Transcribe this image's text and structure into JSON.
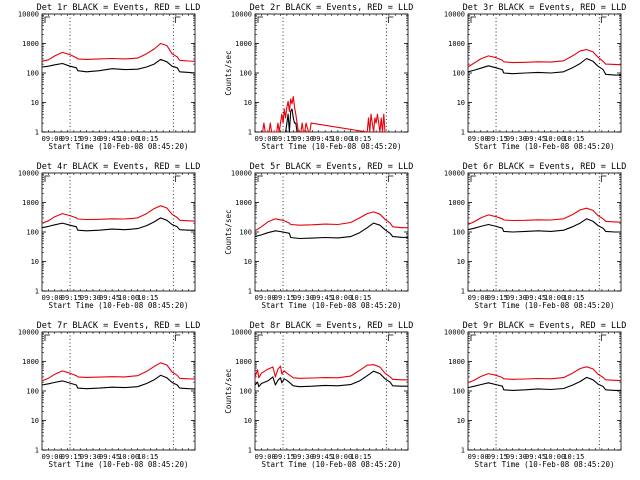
{
  "colors": {
    "events": "#000000",
    "lld": "#e8000b",
    "background": "#ffffff",
    "axes": "#000000"
  },
  "chart_data": {
    "type": "line",
    "layout": "3x3 grid of panels",
    "x_ticks": [
      "09:00",
      "09:15",
      "09:30",
      "09:45",
      "10:00",
      "10:15"
    ],
    "x_range_min": [
      510,
      630
    ],
    "y_scale": "log",
    "y_ticks": [
      "1",
      "10",
      "100",
      "1000",
      "10000"
    ],
    "y_range": [
      1,
      10000
    ],
    "grid": false,
    "xlabel": "Start Time (10-Feb-08 08:45:20)",
    "ylabel": "Counts/sec",
    "vlines_min": [
      532,
      613
    ],
    "series_legend": "BLACK = Events, RED = LLD",
    "panels": [
      {
        "title": "Det 1r BLACK = Events, RED = LLD",
        "show_ylabel": false,
        "series": [
          {
            "key": "events",
            "x": [
              510,
              515,
              520,
              526,
              532,
              537,
              538,
              545,
              555,
              565,
              575,
              585,
              592,
              598,
              603,
              608,
              612,
              616,
              618,
              625,
              630
            ],
            "values": [
              160,
              170,
              190,
              210,
              170,
              150,
              120,
              110,
              120,
              140,
              130,
              135,
              160,
              200,
              290,
              240,
              170,
              150,
              110,
              105,
              100
            ]
          },
          {
            "key": "lld",
            "x": [
              510,
              515,
              520,
              526,
              532,
              537,
              538,
              545,
              555,
              565,
              575,
              585,
              592,
              598,
              603,
              608,
              612,
              616,
              618,
              625,
              630
            ],
            "values": [
              250,
              280,
              380,
              500,
              420,
              330,
              300,
              290,
              300,
              310,
              300,
              320,
              450,
              650,
              1000,
              850,
              450,
              350,
              270,
              255,
              250
            ]
          }
        ]
      },
      {
        "title": "Det 2r BLACK = Events, RED = LLD",
        "show_ylabel": true,
        "series": [
          {
            "key": "events",
            "x": [
              534,
              535,
              536,
              537,
              538,
              539,
              540,
              541,
              542,
              543
            ],
            "values": [
              1,
              2,
              4,
              1,
              5,
              6,
              3,
              2,
              2,
              1
            ]
          },
          {
            "key": "lld",
            "x": [
              516,
              517,
              518,
              521,
              522,
              523,
              527,
              528,
              529,
              530,
              531,
              532,
              533,
              534,
              535,
              536,
              537,
              538,
              539,
              540,
              541,
              542,
              543,
              544,
              546,
              547,
              548,
              549,
              550,
              552,
              553,
              554,
              598,
              599,
              600,
              601,
              602,
              603,
              604,
              605,
              606,
              607,
              608,
              609,
              610,
              611,
              612
            ],
            "values": [
              1,
              2,
              1,
              1,
              2,
              1,
              1,
              2,
              1,
              2,
              4,
              2,
              6,
              3,
              7,
              11,
              5,
              13,
              9,
              16,
              7,
              4,
              2,
              1,
              1,
              2,
              1,
              1,
              2,
              1,
              1,
              2,
              1,
              3,
              1,
              4,
              2,
              1,
              3,
              2,
              4,
              2,
              1,
              3,
              1,
              4,
              1
            ]
          }
        ]
      },
      {
        "title": "Det 3r BLACK = Events, RED = LLD",
        "show_ylabel": false,
        "series": [
          {
            "key": "events",
            "x": [
              510,
              515,
              520,
              526,
              532,
              537,
              538,
              545,
              555,
              565,
              575,
              585,
              592,
              598,
              603,
              608,
              612,
              616,
              618,
              625,
              630
            ],
            "values": [
              110,
              125,
              145,
              175,
              150,
              130,
              100,
              95,
              100,
              105,
              100,
              110,
              150,
              210,
              310,
              250,
              170,
              130,
              90,
              85,
              85
            ]
          },
          {
            "key": "lld",
            "x": [
              510,
              515,
              520,
              526,
              532,
              537,
              538,
              545,
              555,
              565,
              575,
              585,
              592,
              598,
              603,
              608,
              612,
              616,
              618,
              625,
              630
            ],
            "values": [
              160,
              220,
              300,
              380,
              330,
              270,
              240,
              225,
              230,
              240,
              235,
              260,
              380,
              560,
              620,
              520,
              340,
              250,
              200,
              195,
              190
            ]
          }
        ]
      },
      {
        "title": "Det 4r BLACK = Events, RED = LLD",
        "show_ylabel": false,
        "series": [
          {
            "key": "events",
            "x": [
              510,
              515,
              520,
              526,
              532,
              537,
              538,
              545,
              555,
              565,
              575,
              585,
              592,
              598,
              603,
              608,
              612,
              616,
              618,
              625,
              630
            ],
            "values": [
              140,
              155,
              175,
              200,
              170,
              150,
              115,
              110,
              115,
              125,
              120,
              130,
              165,
              220,
              300,
              250,
              180,
              150,
              120,
              115,
              115
            ]
          },
          {
            "key": "lld",
            "x": [
              510,
              515,
              520,
              526,
              532,
              537,
              538,
              545,
              555,
              565,
              575,
              585,
              592,
              598,
              603,
              608,
              612,
              616,
              618,
              625,
              630
            ],
            "values": [
              200,
              240,
              330,
              420,
              360,
              300,
              275,
              265,
              270,
              280,
              275,
              300,
              420,
              620,
              780,
              650,
              400,
              310,
              250,
              240,
              235
            ]
          }
        ]
      },
      {
        "title": "Det 5r BLACK = Events, RED = LLD",
        "show_ylabel": true,
        "series": [
          {
            "key": "events",
            "x": [
              510,
              515,
              520,
              526,
              532,
              537,
              538,
              545,
              555,
              565,
              575,
              585,
              592,
              598,
              603,
              608,
              612,
              616,
              618,
              625,
              630
            ],
            "values": [
              70,
              80,
              95,
              110,
              100,
              90,
              65,
              60,
              62,
              65,
              63,
              70,
              95,
              140,
              200,
              170,
              120,
              90,
              70,
              66,
              65
            ]
          },
          {
            "key": "lld",
            "x": [
              510,
              515,
              520,
              526,
              532,
              537,
              538,
              545,
              555,
              565,
              575,
              585,
              592,
              598,
              603,
              608,
              612,
              616,
              618,
              625,
              630
            ],
            "values": [
              110,
              150,
              220,
              280,
              250,
              200,
              180,
              170,
              175,
              185,
              180,
              210,
              300,
              420,
              480,
              400,
              270,
              200,
              150,
              140,
              140
            ]
          }
        ]
      },
      {
        "title": "Det 6r BLACK = Events, RED = LLD",
        "show_ylabel": false,
        "series": [
          {
            "key": "events",
            "x": [
              510,
              515,
              520,
              526,
              532,
              537,
              538,
              545,
              555,
              565,
              575,
              585,
              592,
              598,
              603,
              608,
              612,
              616,
              618,
              625,
              630
            ],
            "values": [
              120,
              135,
              155,
              180,
              155,
              135,
              105,
              100,
              105,
              110,
              105,
              115,
              150,
              200,
              280,
              230,
              165,
              135,
              105,
              100,
              100
            ]
          },
          {
            "key": "lld",
            "x": [
              510,
              515,
              520,
              526,
              532,
              537,
              538,
              545,
              555,
              565,
              575,
              585,
              592,
              598,
              603,
              608,
              612,
              616,
              618,
              625,
              630
            ],
            "values": [
              180,
              225,
              300,
              380,
              330,
              280,
              255,
              245,
              250,
              260,
              255,
              280,
              390,
              560,
              640,
              540,
              360,
              280,
              230,
              220,
              215
            ]
          }
        ]
      },
      {
        "title": "Det 7r BLACK = Events, RED = LLD",
        "show_ylabel": false,
        "series": [
          {
            "key": "events",
            "x": [
              510,
              515,
              520,
              526,
              532,
              537,
              538,
              545,
              555,
              565,
              575,
              585,
              592,
              598,
              603,
              608,
              612,
              616,
              618,
              625,
              630
            ],
            "values": [
              160,
              175,
              195,
              220,
              185,
              160,
              125,
              120,
              125,
              135,
              130,
              140,
              180,
              240,
              340,
              280,
              195,
              160,
              125,
              120,
              118
            ]
          },
          {
            "key": "lld",
            "x": [
              510,
              515,
              520,
              526,
              532,
              537,
              538,
              545,
              555,
              565,
              575,
              585,
              592,
              598,
              603,
              608,
              612,
              616,
              618,
              625,
              630
            ],
            "values": [
              220,
              270,
              370,
              480,
              400,
              330,
              300,
              290,
              295,
              305,
              300,
              330,
              460,
              680,
              900,
              760,
              440,
              340,
              270,
              260,
              255
            ]
          }
        ]
      },
      {
        "title": "Det 8r BLACK = Events, RED = LLD",
        "show_ylabel": true,
        "series": [
          {
            "key": "events",
            "x": [
              510,
              512,
              513,
              515,
              520,
              524,
              526,
              528,
              530,
              531,
              533,
              535,
              540,
              545,
              555,
              565,
              575,
              585,
              592,
              598,
              603,
              608,
              612,
              616,
              618,
              625,
              630
            ],
            "values": [
              160,
              200,
              140,
              180,
              220,
              300,
              160,
              230,
              280,
              190,
              260,
              230,
              150,
              140,
              145,
              155,
              150,
              165,
              220,
              330,
              470,
              390,
              260,
              200,
              150,
              145,
              145
            ]
          },
          {
            "key": "lld",
            "x": [
              510,
              512,
              513,
              515,
              520,
              524,
              526,
              528,
              530,
              531,
              533,
              535,
              540,
              545,
              555,
              565,
              575,
              585,
              592,
              598,
              603,
              608,
              612,
              616,
              618,
              625,
              630
            ],
            "values": [
              300,
              520,
              280,
              400,
              550,
              650,
              300,
              550,
              700,
              380,
              480,
              400,
              280,
              270,
              275,
              285,
              280,
              320,
              500,
              750,
              780,
              650,
              400,
              300,
              250,
              240,
              240
            ]
          }
        ]
      },
      {
        "title": "Det 9r BLACK = Events, RED = LLD",
        "show_ylabel": false,
        "series": [
          {
            "key": "events",
            "x": [
              510,
              515,
              520,
              526,
              532,
              537,
              538,
              545,
              555,
              565,
              575,
              585,
              592,
              598,
              603,
              608,
              612,
              616,
              618,
              625,
              630
            ],
            "values": [
              130,
              145,
              165,
              190,
              165,
              145,
              110,
              105,
              110,
              118,
              112,
              122,
              158,
              210,
              290,
              240,
              172,
              142,
              110,
              105,
              105
            ]
          },
          {
            "key": "lld",
            "x": [
              510,
              515,
              520,
              526,
              532,
              537,
              538,
              545,
              555,
              565,
              575,
              585,
              592,
              598,
              603,
              608,
              612,
              616,
              618,
              625,
              630
            ],
            "values": [
              190,
              235,
              310,
              390,
              340,
              285,
              260,
              250,
              255,
              265,
              260,
              285,
              400,
              580,
              660,
              560,
              370,
              290,
              240,
              230,
              225
            ]
          }
        ]
      }
    ]
  }
}
